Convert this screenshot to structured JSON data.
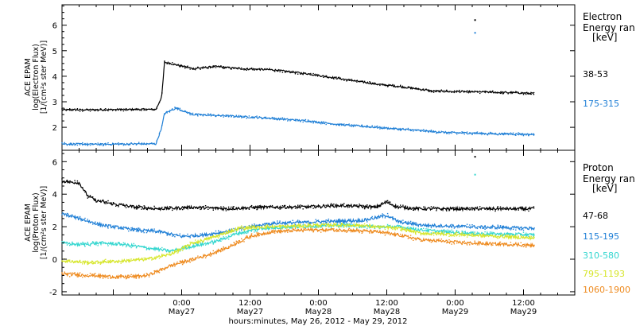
{
  "chart_data": {
    "type": "scatter",
    "x_axis": {
      "label": "hours:minutes, May 26, 2012 - May 29, 2012",
      "ticks": [
        {
          "hour": 24,
          "time": "0:00",
          "date": "May27"
        },
        {
          "hour": 36,
          "time": "12:00",
          "date": "May27"
        },
        {
          "hour": 48,
          "time": "0:00",
          "date": "May28"
        },
        {
          "hour": 60,
          "time": "12:00",
          "date": "May28"
        },
        {
          "hour": 72,
          "time": "0:00",
          "date": "May29"
        },
        {
          "hour": 84,
          "time": "12:00",
          "date": "May29"
        }
      ],
      "xlim": [
        3,
        93
      ]
    },
    "panels": [
      {
        "name": "electron",
        "ylabel": [
          "ACE EPAM",
          "log(Electron Flux)",
          "[1/(cm²s ster MeV)]"
        ],
        "ylim": [
          1.1,
          6.8
        ],
        "yticks": [
          2,
          3,
          4,
          5,
          6
        ],
        "legend_title": [
          "Electron",
          "Energy ran",
          "[keV]"
        ],
        "series": [
          {
            "name": "38-53",
            "color": "#000000",
            "points": [
              [
                3,
                2.68
              ],
              [
                10,
                2.69
              ],
              [
                16,
                2.7
              ],
              [
                19.5,
                2.7
              ],
              [
                20.5,
                3.2
              ],
              [
                21,
                4.55
              ],
              [
                23,
                4.45
              ],
              [
                26,
                4.3
              ],
              [
                30,
                4.38
              ],
              [
                34,
                4.3
              ],
              [
                40,
                4.25
              ],
              [
                46,
                4.1
              ],
              [
                52,
                3.9
              ],
              [
                58,
                3.7
              ],
              [
                64,
                3.55
              ],
              [
                68,
                3.42
              ],
              [
                72,
                3.4
              ],
              [
                78,
                3.38
              ],
              [
                86,
                3.33
              ]
            ]
          },
          {
            "name": "175-315",
            "color": "#1f7fd6",
            "points": [
              [
                3,
                1.35
              ],
              [
                10,
                1.33
              ],
              [
                16,
                1.35
              ],
              [
                19.5,
                1.35
              ],
              [
                20.5,
                2.0
              ],
              [
                21,
                2.55
              ],
              [
                23,
                2.75
              ],
              [
                26,
                2.5
              ],
              [
                32,
                2.45
              ],
              [
                40,
                2.35
              ],
              [
                46,
                2.25
              ],
              [
                52,
                2.1
              ],
              [
                58,
                2.0
              ],
              [
                64,
                1.9
              ],
              [
                70,
                1.8
              ],
              [
                78,
                1.75
              ],
              [
                86,
                1.72
              ]
            ]
          }
        ],
        "outliers": [
          {
            "series": "38-53",
            "x": 75.5,
            "y": 6.2
          },
          {
            "series": "175-315",
            "x": 75.5,
            "y": 5.7
          }
        ]
      },
      {
        "name": "proton",
        "ylabel": [
          "ACE EPAM",
          "log(Proton Flux)",
          "[1/(cm²s ster MeV)]"
        ],
        "ylim": [
          -2.2,
          6.7
        ],
        "yticks": [
          -2,
          0,
          2,
          4,
          6
        ],
        "legend_title": [
          "Proton",
          "Energy ran",
          "[keV]"
        ],
        "series": [
          {
            "name": "47-68",
            "color": "#000000",
            "points": [
              [
                3,
                4.8
              ],
              [
                6,
                4.7
              ],
              [
                7.5,
                3.9
              ],
              [
                9,
                3.6
              ],
              [
                12,
                3.4
              ],
              [
                16,
                3.2
              ],
              [
                20,
                3.1
              ],
              [
                26,
                3.2
              ],
              [
                32,
                3.1
              ],
              [
                38,
                3.2
              ],
              [
                44,
                3.2
              ],
              [
                52,
                3.3
              ],
              [
                58,
                3.2
              ],
              [
                60,
                3.5
              ],
              [
                62,
                3.2
              ],
              [
                66,
                3.1
              ],
              [
                74,
                3.1
              ],
              [
                86,
                3.1
              ]
            ]
          },
          {
            "name": "115-195",
            "color": "#1f7fd6",
            "points": [
              [
                3,
                2.8
              ],
              [
                6,
                2.5
              ],
              [
                10,
                2.1
              ],
              [
                16,
                1.8
              ],
              [
                20,
                1.7
              ],
              [
                24,
                1.4
              ],
              [
                28,
                1.5
              ],
              [
                32,
                1.7
              ],
              [
                36,
                2.0
              ],
              [
                40,
                2.2
              ],
              [
                48,
                2.3
              ],
              [
                56,
                2.4
              ],
              [
                60,
                2.7
              ],
              [
                62,
                2.3
              ],
              [
                66,
                2.1
              ],
              [
                74,
                2.0
              ],
              [
                86,
                1.9
              ]
            ]
          },
          {
            "name": "310-580",
            "color": "#33d6cf",
            "points": [
              [
                3,
                1.0
              ],
              [
                6,
                0.9
              ],
              [
                10,
                1.0
              ],
              [
                14,
                0.9
              ],
              [
                18,
                0.7
              ],
              [
                22,
                0.5
              ],
              [
                26,
                0.8
              ],
              [
                30,
                1.1
              ],
              [
                34,
                1.6
              ],
              [
                38,
                1.9
              ],
              [
                44,
                2.0
              ],
              [
                52,
                2.1
              ],
              [
                58,
                2.0
              ],
              [
                62,
                2.0
              ],
              [
                66,
                1.8
              ],
              [
                74,
                1.6
              ],
              [
                86,
                1.5
              ]
            ]
          },
          {
            "name": "795-1193",
            "color": "#d6e62a",
            "points": [
              [
                3,
                -0.1
              ],
              [
                8,
                -0.2
              ],
              [
                14,
                -0.1
              ],
              [
                18,
                0.0
              ],
              [
                22,
                0.3
              ],
              [
                26,
                1.0
              ],
              [
                30,
                1.4
              ],
              [
                34,
                1.9
              ],
              [
                40,
                2.0
              ],
              [
                48,
                2.1
              ],
              [
                54,
                2.1
              ],
              [
                58,
                2.0
              ],
              [
                62,
                1.9
              ],
              [
                66,
                1.6
              ],
              [
                74,
                1.5
              ],
              [
                86,
                1.3
              ]
            ]
          },
          {
            "name": "1060-1900",
            "color": "#ee8a1e",
            "points": [
              [
                3,
                -0.9
              ],
              [
                8,
                -1.0
              ],
              [
                14,
                -1.1
              ],
              [
                18,
                -1.0
              ],
              [
                22,
                -0.4
              ],
              [
                24,
                -0.2
              ],
              [
                28,
                0.2
              ],
              [
                32,
                0.7
              ],
              [
                36,
                1.4
              ],
              [
                40,
                1.7
              ],
              [
                46,
                1.8
              ],
              [
                52,
                1.8
              ],
              [
                58,
                1.7
              ],
              [
                62,
                1.5
              ],
              [
                66,
                1.2
              ],
              [
                74,
                1.0
              ],
              [
                86,
                0.85
              ]
            ]
          }
        ],
        "outliers": [
          {
            "series": "47-68",
            "x": 75.5,
            "y": 6.3
          },
          {
            "series": "310-580",
            "x": 75.5,
            "y": 5.2
          }
        ]
      }
    ]
  }
}
